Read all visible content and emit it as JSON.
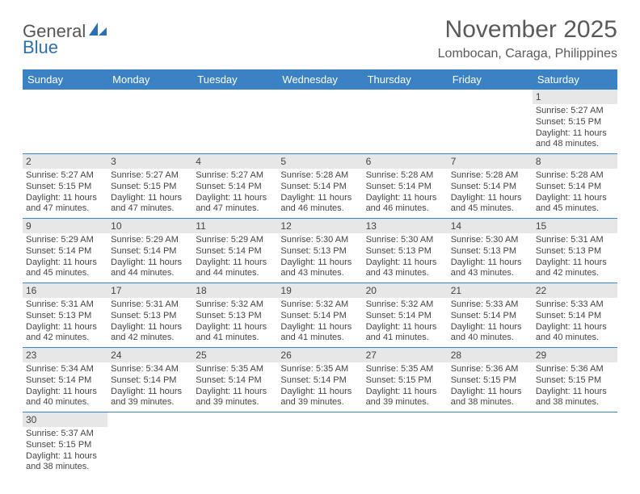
{
  "logo": {
    "text1": "General",
    "text2": "Blue"
  },
  "title": "November 2025",
  "location": "Lombocan, Caraga, Philippines",
  "colors": {
    "header_bg": "#3b82c4",
    "header_text": "#ffffff",
    "daynum_bg": "#e7e7e7",
    "border": "#3b82c4",
    "text": "#444444",
    "title_text": "#5a5a5a"
  },
  "weekdays": [
    "Sunday",
    "Monday",
    "Tuesday",
    "Wednesday",
    "Thursday",
    "Friday",
    "Saturday"
  ],
  "weeks": [
    [
      null,
      null,
      null,
      null,
      null,
      null,
      {
        "n": "1",
        "sr": "5:27 AM",
        "ss": "5:15 PM",
        "dl": "11 hours and 48 minutes."
      }
    ],
    [
      {
        "n": "2",
        "sr": "5:27 AM",
        "ss": "5:15 PM",
        "dl": "11 hours and 47 minutes."
      },
      {
        "n": "3",
        "sr": "5:27 AM",
        "ss": "5:15 PM",
        "dl": "11 hours and 47 minutes."
      },
      {
        "n": "4",
        "sr": "5:27 AM",
        "ss": "5:14 PM",
        "dl": "11 hours and 47 minutes."
      },
      {
        "n": "5",
        "sr": "5:28 AM",
        "ss": "5:14 PM",
        "dl": "11 hours and 46 minutes."
      },
      {
        "n": "6",
        "sr": "5:28 AM",
        "ss": "5:14 PM",
        "dl": "11 hours and 46 minutes."
      },
      {
        "n": "7",
        "sr": "5:28 AM",
        "ss": "5:14 PM",
        "dl": "11 hours and 45 minutes."
      },
      {
        "n": "8",
        "sr": "5:28 AM",
        "ss": "5:14 PM",
        "dl": "11 hours and 45 minutes."
      }
    ],
    [
      {
        "n": "9",
        "sr": "5:29 AM",
        "ss": "5:14 PM",
        "dl": "11 hours and 45 minutes."
      },
      {
        "n": "10",
        "sr": "5:29 AM",
        "ss": "5:14 PM",
        "dl": "11 hours and 44 minutes."
      },
      {
        "n": "11",
        "sr": "5:29 AM",
        "ss": "5:14 PM",
        "dl": "11 hours and 44 minutes."
      },
      {
        "n": "12",
        "sr": "5:30 AM",
        "ss": "5:13 PM",
        "dl": "11 hours and 43 minutes."
      },
      {
        "n": "13",
        "sr": "5:30 AM",
        "ss": "5:13 PM",
        "dl": "11 hours and 43 minutes."
      },
      {
        "n": "14",
        "sr": "5:30 AM",
        "ss": "5:13 PM",
        "dl": "11 hours and 43 minutes."
      },
      {
        "n": "15",
        "sr": "5:31 AM",
        "ss": "5:13 PM",
        "dl": "11 hours and 42 minutes."
      }
    ],
    [
      {
        "n": "16",
        "sr": "5:31 AM",
        "ss": "5:13 PM",
        "dl": "11 hours and 42 minutes."
      },
      {
        "n": "17",
        "sr": "5:31 AM",
        "ss": "5:13 PM",
        "dl": "11 hours and 42 minutes."
      },
      {
        "n": "18",
        "sr": "5:32 AM",
        "ss": "5:13 PM",
        "dl": "11 hours and 41 minutes."
      },
      {
        "n": "19",
        "sr": "5:32 AM",
        "ss": "5:14 PM",
        "dl": "11 hours and 41 minutes."
      },
      {
        "n": "20",
        "sr": "5:32 AM",
        "ss": "5:14 PM",
        "dl": "11 hours and 41 minutes."
      },
      {
        "n": "21",
        "sr": "5:33 AM",
        "ss": "5:14 PM",
        "dl": "11 hours and 40 minutes."
      },
      {
        "n": "22",
        "sr": "5:33 AM",
        "ss": "5:14 PM",
        "dl": "11 hours and 40 minutes."
      }
    ],
    [
      {
        "n": "23",
        "sr": "5:34 AM",
        "ss": "5:14 PM",
        "dl": "11 hours and 40 minutes."
      },
      {
        "n": "24",
        "sr": "5:34 AM",
        "ss": "5:14 PM",
        "dl": "11 hours and 39 minutes."
      },
      {
        "n": "25",
        "sr": "5:35 AM",
        "ss": "5:14 PM",
        "dl": "11 hours and 39 minutes."
      },
      {
        "n": "26",
        "sr": "5:35 AM",
        "ss": "5:14 PM",
        "dl": "11 hours and 39 minutes."
      },
      {
        "n": "27",
        "sr": "5:35 AM",
        "ss": "5:15 PM",
        "dl": "11 hours and 39 minutes."
      },
      {
        "n": "28",
        "sr": "5:36 AM",
        "ss": "5:15 PM",
        "dl": "11 hours and 38 minutes."
      },
      {
        "n": "29",
        "sr": "5:36 AM",
        "ss": "5:15 PM",
        "dl": "11 hours and 38 minutes."
      }
    ],
    [
      {
        "n": "30",
        "sr": "5:37 AM",
        "ss": "5:15 PM",
        "dl": "11 hours and 38 minutes."
      },
      null,
      null,
      null,
      null,
      null,
      null
    ]
  ],
  "labels": {
    "sunrise": "Sunrise:",
    "sunset": "Sunset:",
    "daylight": "Daylight:"
  }
}
